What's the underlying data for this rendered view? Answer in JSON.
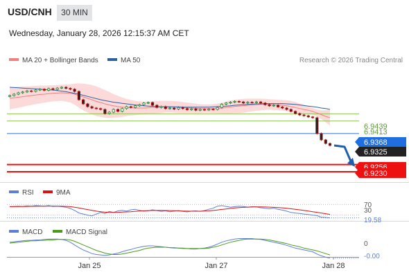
{
  "header": {
    "pair": "USD/CNH",
    "timeframe": "30 MIN",
    "datetime": "Wednesday, January 28, 2026 12:15:37 AM CET"
  },
  "main_legend": {
    "items": [
      {
        "label": "MA 20 + Bollinger Bands",
        "color": "#f08080"
      },
      {
        "label": "MA 50",
        "color": "#2c5f9e"
      }
    ],
    "credit": "Research © 2026 Trading Central"
  },
  "price_labels": [
    {
      "value": "6.9439",
      "kind": "text",
      "color": "#5aa02c"
    },
    {
      "value": "6.9413",
      "kind": "text",
      "color": "#5aa02c"
    },
    {
      "value": "6.9368",
      "kind": "box",
      "color": "#1f6fe0"
    },
    {
      "value": "6.9325",
      "kind": "box",
      "color": "#222222"
    },
    {
      "value": "6.9256",
      "kind": "box",
      "color": "#ee1111"
    },
    {
      "value": "6.9230",
      "kind": "box",
      "color": "#ee1111"
    }
  ],
  "rsi_legend": [
    {
      "label": "RSI",
      "color": "#5b7fd6"
    },
    {
      "label": "9MA",
      "color": "#dd1111"
    }
  ],
  "rsi_labels": {
    "upper": "70",
    "lower": "30",
    "current": "19.58"
  },
  "macd_legend": [
    {
      "label": "MACD",
      "color": "#5b7fd6"
    },
    {
      "label": "MACD Signal",
      "color": "#4a9a1a"
    }
  ],
  "macd_labels": {
    "zero": "0",
    "current": "-0.00"
  },
  "x_axis": {
    "ticks": [
      "Jan 25",
      "Jan 27",
      "Jan 28"
    ]
  },
  "chart_data": [
    {
      "type": "candlestick",
      "title": "USD/CNH 30 MIN",
      "ylim": [
        6.922,
        6.958
      ],
      "close": [
        6.9505,
        6.951,
        6.9515,
        6.9518,
        6.9522,
        6.952,
        6.9525,
        6.9528,
        6.9524,
        6.953,
        6.9527,
        6.9532,
        6.9535,
        6.9531,
        6.9528,
        6.952,
        6.949,
        6.9475,
        6.9465,
        6.946,
        6.9458,
        6.9455,
        6.944,
        6.9445,
        6.9455,
        6.9448,
        6.9458,
        6.9465,
        6.9462,
        6.9468,
        6.9472,
        6.9478,
        6.948,
        6.947,
        6.9462,
        6.9465,
        6.9458,
        6.946,
        6.9456,
        6.9462,
        6.9458,
        6.9454,
        6.9457,
        6.9452,
        6.9455,
        6.9453,
        6.9456,
        6.9455,
        6.9462,
        6.9474,
        6.9478,
        6.9481,
        6.9484,
        6.9482,
        6.9478,
        6.9481,
        6.948,
        6.9482,
        6.9478,
        6.9472,
        6.9468,
        6.947,
        6.9464,
        6.946,
        6.9455,
        6.9448,
        6.944,
        6.9435,
        6.9432,
        6.9428,
        6.9425,
        6.9368,
        6.9345,
        6.9332,
        6.9325
      ],
      "ma20": [
        6.9495,
        6.9497,
        6.9499,
        6.9501,
        6.9503,
        6.9505,
        6.9507,
        6.9509,
        6.951,
        6.9512,
        6.9513,
        6.9514,
        6.9515,
        6.9514,
        6.9513,
        6.951,
        6.9505,
        6.95,
        6.9495,
        6.949,
        6.9484,
        6.948,
        6.9475,
        6.9471,
        6.9468,
        6.9465,
        6.9463,
        6.9462,
        6.9461,
        6.946,
        6.946,
        6.946,
        6.9461,
        6.9462,
        6.9463,
        6.9464,
        6.9465,
        6.9465,
        6.9464,
        6.9463,
        6.9462,
        6.9461,
        6.946,
        6.9459,
        6.9458,
        6.9458,
        6.9458,
        6.9458,
        6.9459,
        6.946,
        6.9462,
        6.9464,
        6.9466,
        6.9467,
        6.9468,
        6.947,
        6.9471,
        6.9472,
        6.9473,
        6.9473,
        6.9473,
        6.9472,
        6.9471,
        6.947,
        6.9468,
        6.9465,
        6.9462,
        6.9458,
        6.9455,
        6.9452,
        6.9448,
        6.9442,
        6.9436,
        6.943,
        6.9425
      ],
      "bb_upper": [
        6.9535,
        6.9536,
        6.9537,
        6.9538,
        6.9538,
        6.9539,
        6.954,
        6.9541,
        6.9541,
        6.9542,
        6.9542,
        6.9543,
        6.9544,
        6.9545,
        6.9546,
        6.9548,
        6.9549,
        6.9548,
        6.9546,
        6.9543,
        6.9538,
        6.9532,
        6.9525,
        6.9518,
        6.951,
        6.9504,
        6.9498,
        6.9493,
        6.9489,
        6.9486,
        6.9484,
        6.9483,
        6.9483,
        6.9484,
        6.9485,
        6.9486,
        6.9486,
        6.9486,
        6.9485,
        6.9484,
        6.9482,
        6.948,
        6.9478,
        6.9476,
        6.9474,
        6.9473,
        6.9473,
        6.9474,
        6.9476,
        6.9479,
        6.9483,
        6.9487,
        6.949,
        6.9492,
        6.9493,
        6.9494,
        6.9494,
        6.9494,
        6.9494,
        6.9493,
        6.9492,
        6.9491,
        6.949,
        6.9489,
        6.9488,
        6.9486,
        6.9482,
        6.9477,
        6.9472,
        6.9466,
        6.946,
        6.9455,
        6.9452,
        6.9452,
        6.9453
      ],
      "bb_lower": [
        6.9455,
        6.9458,
        6.9461,
        6.9464,
        6.9468,
        6.9471,
        6.9474,
        6.9477,
        6.9479,
        6.9482,
        6.9484,
        6.9485,
        6.9486,
        6.9483,
        6.948,
        6.9472,
        6.9461,
        6.9452,
        6.9444,
        6.9437,
        6.9431,
        6.9428,
        6.9425,
        6.9424,
        6.9425,
        6.9426,
        6.9428,
        6.9431,
        6.9433,
        6.9434,
        6.9436,
        6.9437,
        6.9439,
        6.944,
        6.9441,
        6.9442,
        6.9444,
        6.9444,
        6.9443,
        6.9442,
        6.9442,
        6.9442,
        6.9442,
        6.9442,
        6.9442,
        6.9443,
        6.9443,
        6.9442,
        6.9442,
        6.9441,
        6.9441,
        6.9441,
        6.9442,
        6.9442,
        6.9443,
        6.9446,
        6.9448,
        6.945,
        6.9452,
        6.9453,
        6.9454,
        6.9453,
        6.9452,
        6.9451,
        6.9448,
        6.9444,
        6.9442,
        6.9439,
        6.9438,
        6.9438,
        6.9436,
        6.9429,
        6.942,
        6.9408,
        6.9397
      ],
      "ma50": [
        6.9535,
        6.9534,
        6.9533,
        6.9532,
        6.9531,
        6.953,
        6.9529,
        6.9528,
        6.9527,
        6.9526,
        6.9525,
        6.9523,
        6.9521,
        6.9519,
        6.9516,
        6.9513,
        6.951,
        6.9506,
        6.9502,
        6.9498,
        6.9494,
        6.949,
        6.9487,
        6.9484,
        6.9481,
        6.9479,
        6.9477,
        6.9475,
        6.9473,
        6.9471,
        6.947,
        6.9468,
        6.9467,
        6.9466,
        6.9465,
        6.9465,
        6.9464,
        6.9464,
        6.9464,
        6.9464,
        6.9463,
        6.9463,
        6.9463,
        6.9463,
        6.9463,
        6.9463,
        6.9463,
        6.9464,
        6.9465,
        6.9466,
        6.9467,
        6.9468,
        6.947,
        6.9471,
        6.9472,
        6.9473,
        6.9474,
        6.9475,
        6.9475,
        6.9476,
        6.9476,
        6.9476,
        6.9476,
        6.9476,
        6.9475,
        6.9474,
        6.9473,
        6.9471,
        6.9469,
        6.9467,
        6.9465,
        6.9463,
        6.946,
        6.9458,
        6.9455
      ],
      "levels": [
        {
          "value": 6.9439,
          "style": "support-thin",
          "color": "#8bc34a"
        },
        {
          "value": 6.9413,
          "style": "support-thin",
          "color": "#8bc34a"
        },
        {
          "value": 6.9368,
          "style": "pivot",
          "color": "#4a7fd6"
        },
        {
          "value": 6.9256,
          "style": "target",
          "color": "#ee1111"
        },
        {
          "value": 6.923,
          "style": "target",
          "color": "#ee1111"
        }
      ],
      "forecast_arrow": {
        "from": 6.9325,
        "to": 6.9248,
        "color": "#1f5fa8"
      }
    },
    {
      "type": "line",
      "title": "RSI",
      "ylim": [
        0,
        100
      ],
      "reference_lines": [
        70,
        30
      ],
      "series": [
        {
          "name": "RSI",
          "color": "#5b7fd6",
          "values": [
            62,
            63,
            64,
            63,
            65,
            64,
            66,
            65,
            64,
            66,
            63,
            64,
            62,
            60,
            55,
            48,
            38,
            34,
            30,
            27,
            34,
            40,
            36,
            44,
            40,
            46,
            48,
            45,
            50,
            52,
            48,
            45,
            46,
            50,
            47,
            44,
            46,
            43,
            45,
            47,
            44,
            42,
            45,
            46,
            44,
            47,
            52,
            56,
            64,
            66,
            63,
            60,
            62,
            64,
            63,
            60,
            62,
            61,
            58,
            56,
            54,
            56,
            52,
            49,
            45,
            40,
            38,
            36,
            34,
            32,
            30,
            28,
            22,
            21,
            19.58
          ]
        },
        {
          "name": "9MA",
          "color": "#dd1111",
          "values": [
            62,
            62.2,
            62.5,
            62.7,
            63,
            63.3,
            63.5,
            63.8,
            64,
            64.2,
            64.2,
            64,
            63.6,
            63,
            62,
            60,
            57,
            54,
            51,
            48,
            45,
            43,
            41,
            40,
            40,
            40.5,
            41.2,
            42,
            43,
            44.5,
            45.5,
            46.2,
            47,
            47.5,
            47.6,
            47.6,
            47.4,
            47,
            46.5,
            46,
            45.5,
            45,
            44.8,
            44.7,
            44.8,
            45.2,
            46,
            47.5,
            49.5,
            51.5,
            53.5,
            55.3,
            57,
            58.5,
            59.6,
            60.2,
            60.7,
            61,
            61,
            60.8,
            60.3,
            59.6,
            58.8,
            57.5,
            56,
            54,
            52,
            50,
            47.7,
            45.5,
            43,
            40.5,
            38,
            35.2,
            32.5
          ]
        }
      ]
    },
    {
      "type": "line",
      "title": "MACD",
      "ylim": [
        -0.0032,
        0.0032
      ],
      "series": [
        {
          "name": "MACD",
          "color": "#5b7fd6",
          "values": [
            0.0008,
            0.0009,
            0.001,
            0.0011,
            0.0012,
            0.0012,
            0.0013,
            0.0013,
            0.0014,
            0.0015,
            0.0015,
            0.0015,
            0.0014,
            0.0012,
            0.0008,
            0.0002,
            -0.0004,
            -0.0009,
            -0.0013,
            -0.0017,
            -0.0019,
            -0.002,
            -0.0021,
            -0.002,
            -0.0018,
            -0.0016,
            -0.0013,
            -0.001,
            -0.0008,
            -0.0005,
            -0.0003,
            -0.0001,
            0.0,
            0.0,
            -0.0001,
            -0.0002,
            -0.0003,
            -0.0004,
            -0.0005,
            -0.0005,
            -0.0006,
            -0.0006,
            -0.0007,
            -0.0007,
            -0.0006,
            -0.0005,
            -0.0003,
            0.0,
            0.0004,
            0.0008,
            0.0011,
            0.0013,
            0.0015,
            0.0016,
            0.0016,
            0.0016,
            0.0016,
            0.0015,
            0.0014,
            0.0012,
            0.001,
            0.0008,
            0.0006,
            0.0004,
            0.0001,
            -0.0002,
            -0.0005,
            -0.0007,
            -0.0009,
            -0.0011,
            -0.0013,
            -0.0018,
            -0.0022,
            -0.0025,
            -0.0027
          ]
        },
        {
          "name": "MACD Signal",
          "color": "#4a9a1a",
          "values": [
            0.0006,
            0.0007,
            0.0008,
            0.0009,
            0.001,
            0.0011,
            0.0011,
            0.0012,
            0.0012,
            0.0013,
            0.0013,
            0.0014,
            0.0014,
            0.0014,
            0.0013,
            0.001,
            0.0006,
            0.0002,
            -0.0002,
            -0.0006,
            -0.001,
            -0.0013,
            -0.0016,
            -0.0018,
            -0.0019,
            -0.0019,
            -0.0018,
            -0.0016,
            -0.0014,
            -0.0012,
            -0.001,
            -0.0007,
            -0.0005,
            -0.0004,
            -0.0003,
            -0.0003,
            -0.0003,
            -0.0004,
            -0.0004,
            -0.0005,
            -0.0005,
            -0.0006,
            -0.0006,
            -0.0006,
            -0.0006,
            -0.0006,
            -0.0005,
            -0.0003,
            -0.0001,
            0.0002,
            0.0005,
            0.0008,
            0.001,
            0.0012,
            0.0014,
            0.0015,
            0.0015,
            0.0015,
            0.0015,
            0.0014,
            0.0013,
            0.0011,
            0.0009,
            0.0007,
            0.0005,
            0.0002,
            0.0,
            -0.0002,
            -0.0005,
            -0.0007,
            -0.0009,
            -0.0011,
            -0.0014,
            -0.0017,
            -0.002
          ]
        }
      ]
    }
  ]
}
